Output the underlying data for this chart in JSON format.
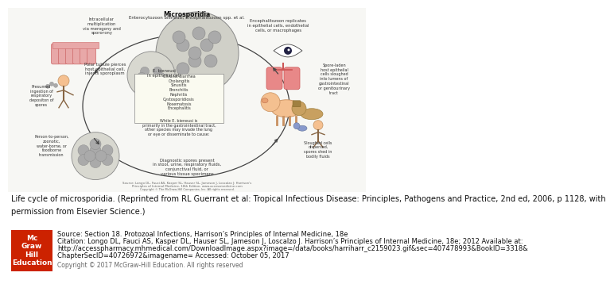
{
  "caption_line1": "Life cycle of microsporidia. (Reprinted from RL Guerrant et al: Tropical Infectious Disease: Principles, Pathogens and Practice, 2nd ed, 2006, p 1128, with",
  "caption_line2": "permission from Elsevier Science.)",
  "source_line1": "Source: Section 18. Protozoal Infections, Harrison’s Principles of Internal Medicine, 18e",
  "source_line2": "Citation: Longo DL, Fauci AS, Kasper DL, Hauser SL, Jameson J, Loscalzo J. Harrison’s Principles of Internal Medicine, 18e; 2012 Available at:",
  "source_line3": "http://accesspharmacy.mhmedical.com/DownloadImage.aspx?image=/data/books/harriharr_c2159023.gif&sec=407478993&BookID=3318&",
  "source_line4": "ChapterSecID=40726972&imagename= Accessed: October 05, 2017",
  "copyright": "Copyright © 2017 McGraw-Hill Education. All rights reserved",
  "bg_color": "#ffffff",
  "diagram_bg": "#f5f5f0",
  "caption_fontsize": 7.0,
  "source_fontsize": 6.0,
  "mcgraw_box_color": "#cc2200",
  "mcgraw_text_color": "#ffffff",
  "mcgraw_text": "Mc\nGraw\nHill\nEducation"
}
